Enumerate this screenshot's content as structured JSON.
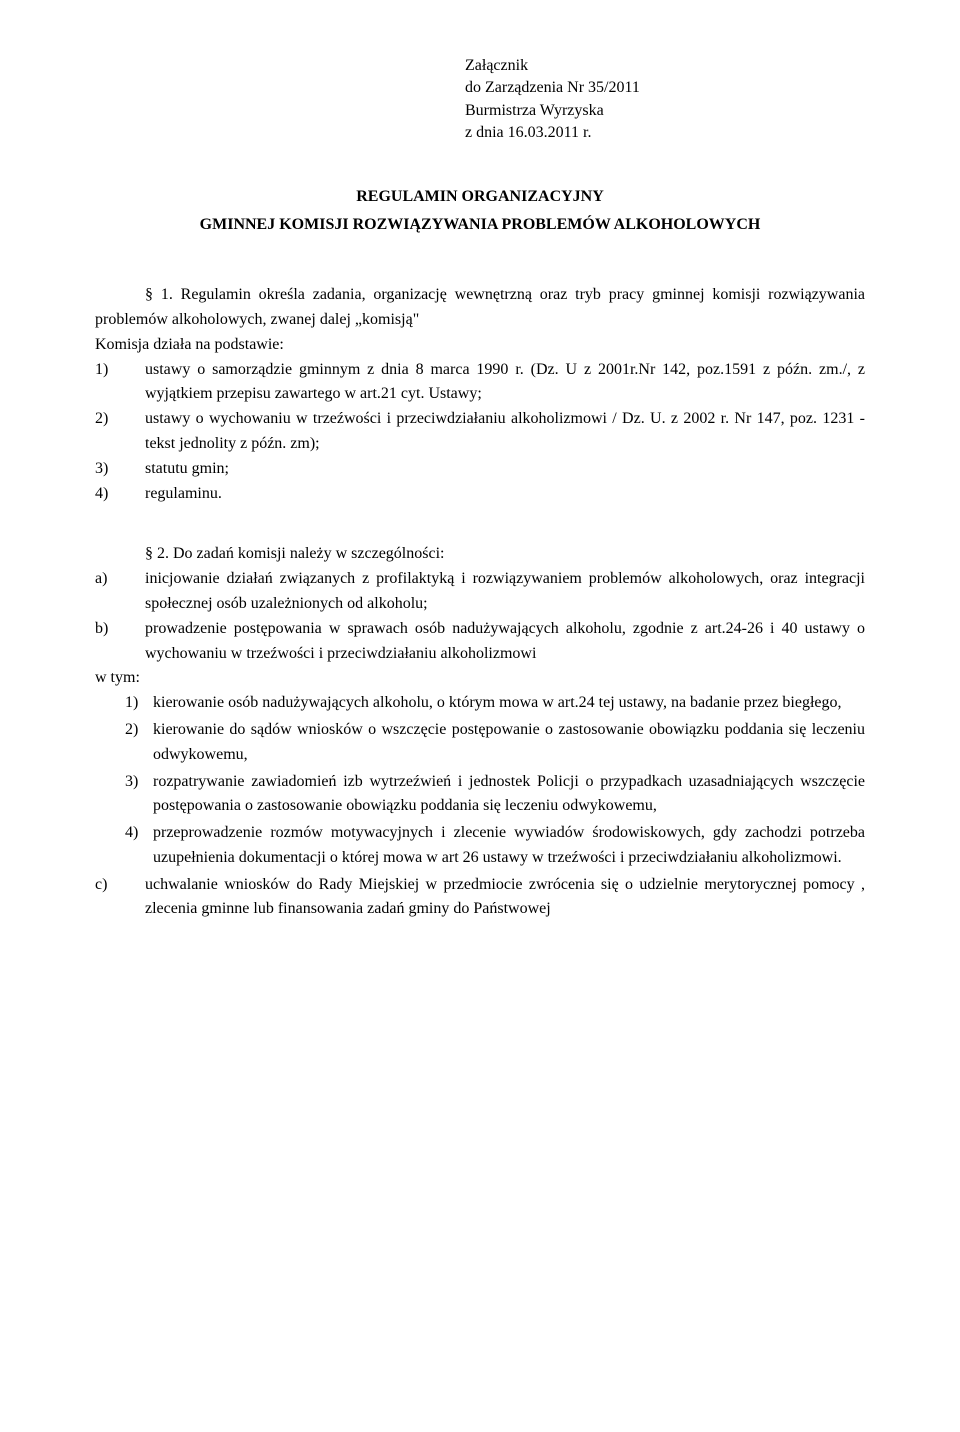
{
  "attachment": {
    "line1": "Załącznik",
    "line2": "do Zarządzenia Nr 35/2011",
    "line3": "Burmistrza Wyrzyska",
    "line4": "z dnia 16.03.2011 r."
  },
  "title": {
    "line1": "REGULAMIN ORGANIZACYJNY",
    "line2": "GMINNEJ KOMISJI ROZWIĄZYWANIA PROBLEMÓW ALKOHOLOWYCH"
  },
  "s1": {
    "lead": "§ 1. Regulamin określa zadania, organizację wewnętrzną oraz tryb pracy gminnej komisji rozwiązywania problemów alkoholowych, zwanej dalej „komisją\"",
    "basis": "Komisja działa na podstawie:",
    "items": [
      {
        "num": "1)",
        "text": "ustawy o samorządzie gminnym z dnia 8 marca 1990 r. (Dz. U z 2001r.Nr 142, poz.1591 z późn. zm./, z wyjątkiem przepisu zawartego w art.21 cyt. Ustawy;"
      },
      {
        "num": "2)",
        "text": "ustawy o wychowaniu w trzeźwości i przeciwdziałaniu alkoholizmowi / Dz. U. z 2002 r. Nr 147, poz. 1231 -tekst jednolity z późn. zm);"
      },
      {
        "num": "3)",
        "text": "statutu gmin;"
      },
      {
        "num": "4)",
        "text": "regulaminu."
      }
    ]
  },
  "s2": {
    "lead": "§ 2. Do zadań komisji należy w szczególności:",
    "items": [
      {
        "num": "a)",
        "text": "inicjowanie działań związanych z profilaktyką i rozwiązywaniem problemów alkoholowych, oraz integracji społecznej osób uzależnionych od alkoholu;"
      },
      {
        "num": "b)",
        "text": "prowadzenie postępowania w sprawach osób nadużywających alkoholu, zgodnie z art.24-26 i 40 ustawy o wychowaniu w trzeźwości i przeciwdziałaniu alkoholizmowi"
      }
    ],
    "wtym": "w tym:",
    "subitems": [
      {
        "num": "1)",
        "text": "kierowanie osób nadużywających alkoholu, o którym mowa w art.24 tej ustawy, na badanie przez biegłego,"
      },
      {
        "num": "2)",
        "text": "kierowanie do sądów wniosków o wszczęcie postępowanie o zastosowanie obowiązku poddania się leczeniu odwykowemu,"
      },
      {
        "num": "3)",
        "text": "rozpatrywanie zawiadomień izb wytrzeźwień i jednostek Policji o przypadkach uzasadniających wszczęcie postępowania o zastosowanie obowiązku poddania się leczeniu odwykowemu,"
      },
      {
        "num": "4)",
        "text": "przeprowadzenie rozmów motywacyjnych i zlecenie wywiadów środowiskowych, gdy zachodzi potrzeba uzupełnienia dokumentacji o której mowa w art 26 ustawy w trzeźwości i przeciwdziałaniu alkoholizmowi."
      }
    ],
    "item_c": {
      "num": "c)",
      "text": "uchwalanie wniosków do Rady Miejskiej w przedmiocie zwrócenia się o udzielnie merytorycznej pomocy , zlecenia gminne lub finansowania zadań gminy do Państwowej"
    }
  }
}
